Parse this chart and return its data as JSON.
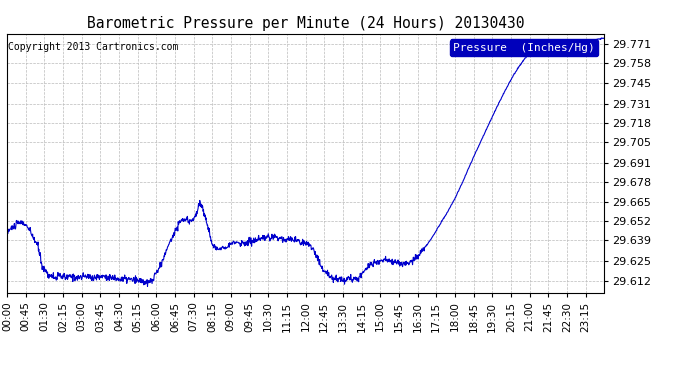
{
  "title": "Barometric Pressure per Minute (24 Hours) 20130430",
  "copyright": "Copyright 2013 Cartronics.com",
  "legend_label": "Pressure  (Inches/Hg)",
  "line_color": "#0000cc",
  "background_color": "#ffffff",
  "grid_color": "#bbbbbb",
  "yticks": [
    29.612,
    29.625,
    29.639,
    29.652,
    29.665,
    29.678,
    29.691,
    29.705,
    29.718,
    29.731,
    29.745,
    29.758,
    29.771
  ],
  "ylim": [
    29.604,
    29.778
  ],
  "xtick_labels": [
    "00:00",
    "00:45",
    "01:30",
    "02:15",
    "03:00",
    "03:45",
    "04:30",
    "05:15",
    "06:00",
    "06:45",
    "07:30",
    "08:15",
    "09:00",
    "09:45",
    "10:30",
    "11:15",
    "12:00",
    "12:45",
    "13:30",
    "14:15",
    "15:00",
    "15:45",
    "16:30",
    "17:15",
    "18:00",
    "18:45",
    "19:30",
    "20:15",
    "21:00",
    "21:45",
    "22:30",
    "23:15"
  ],
  "num_minutes": 1440,
  "keypoints": [
    [
      0,
      29.645
    ],
    [
      15,
      29.648
    ],
    [
      30,
      29.651
    ],
    [
      45,
      29.65
    ],
    [
      60,
      29.643
    ],
    [
      75,
      29.635
    ],
    [
      85,
      29.622
    ],
    [
      100,
      29.616
    ],
    [
      115,
      29.614
    ],
    [
      130,
      29.615
    ],
    [
      145,
      29.614
    ],
    [
      160,
      29.615
    ],
    [
      175,
      29.614
    ],
    [
      190,
      29.615
    ],
    [
      210,
      29.614
    ],
    [
      230,
      29.615
    ],
    [
      250,
      29.614
    ],
    [
      270,
      29.613
    ],
    [
      290,
      29.613
    ],
    [
      310,
      29.612
    ],
    [
      325,
      29.612
    ],
    [
      335,
      29.61
    ],
    [
      350,
      29.612
    ],
    [
      370,
      29.622
    ],
    [
      390,
      29.636
    ],
    [
      405,
      29.645
    ],
    [
      415,
      29.651
    ],
    [
      425,
      29.653
    ],
    [
      440,
      29.652
    ],
    [
      455,
      29.655
    ],
    [
      465,
      29.665
    ],
    [
      475,
      29.658
    ],
    [
      485,
      29.648
    ],
    [
      495,
      29.636
    ],
    [
      505,
      29.633
    ],
    [
      515,
      29.634
    ],
    [
      525,
      29.635
    ],
    [
      535,
      29.636
    ],
    [
      545,
      29.637
    ],
    [
      555,
      29.638
    ],
    [
      565,
      29.637
    ],
    [
      575,
      29.637
    ],
    [
      585,
      29.638
    ],
    [
      595,
      29.639
    ],
    [
      605,
      29.639
    ],
    [
      615,
      29.64
    ],
    [
      625,
      29.641
    ],
    [
      635,
      29.641
    ],
    [
      645,
      29.641
    ],
    [
      655,
      29.641
    ],
    [
      665,
      29.64
    ],
    [
      675,
      29.64
    ],
    [
      685,
      29.64
    ],
    [
      695,
      29.639
    ],
    [
      705,
      29.638
    ],
    [
      715,
      29.638
    ],
    [
      725,
      29.637
    ],
    [
      735,
      29.635
    ],
    [
      745,
      29.629
    ],
    [
      755,
      29.623
    ],
    [
      765,
      29.619
    ],
    [
      775,
      29.616
    ],
    [
      785,
      29.614
    ],
    [
      795,
      29.613
    ],
    [
      805,
      29.613
    ],
    [
      815,
      29.613
    ],
    [
      825,
      29.614
    ],
    [
      835,
      29.613
    ],
    [
      845,
      29.613
    ],
    [
      855,
      29.616
    ],
    [
      865,
      29.62
    ],
    [
      875,
      29.623
    ],
    [
      885,
      29.624
    ],
    [
      895,
      29.625
    ],
    [
      905,
      29.626
    ],
    [
      915,
      29.626
    ],
    [
      925,
      29.625
    ],
    [
      935,
      29.624
    ],
    [
      945,
      29.624
    ],
    [
      955,
      29.623
    ],
    [
      965,
      29.624
    ],
    [
      975,
      29.625
    ],
    [
      985,
      29.627
    ],
    [
      995,
      29.63
    ],
    [
      1005,
      29.633
    ],
    [
      1015,
      29.637
    ],
    [
      1025,
      29.641
    ],
    [
      1040,
      29.648
    ],
    [
      1060,
      29.657
    ],
    [
      1080,
      29.667
    ],
    [
      1100,
      29.679
    ],
    [
      1120,
      29.692
    ],
    [
      1140,
      29.704
    ],
    [
      1160,
      29.716
    ],
    [
      1180,
      29.728
    ],
    [
      1200,
      29.739
    ],
    [
      1215,
      29.747
    ],
    [
      1230,
      29.754
    ],
    [
      1245,
      29.76
    ],
    [
      1260,
      29.765
    ],
    [
      1275,
      29.769
    ],
    [
      1290,
      29.771
    ],
    [
      1310,
      29.772
    ],
    [
      1350,
      29.772
    ],
    [
      1390,
      29.773
    ],
    [
      1420,
      29.774
    ],
    [
      1439,
      29.775
    ]
  ],
  "noise_seed": 10,
  "noise_std": 0.0012,
  "noise_cutoff": 1010
}
